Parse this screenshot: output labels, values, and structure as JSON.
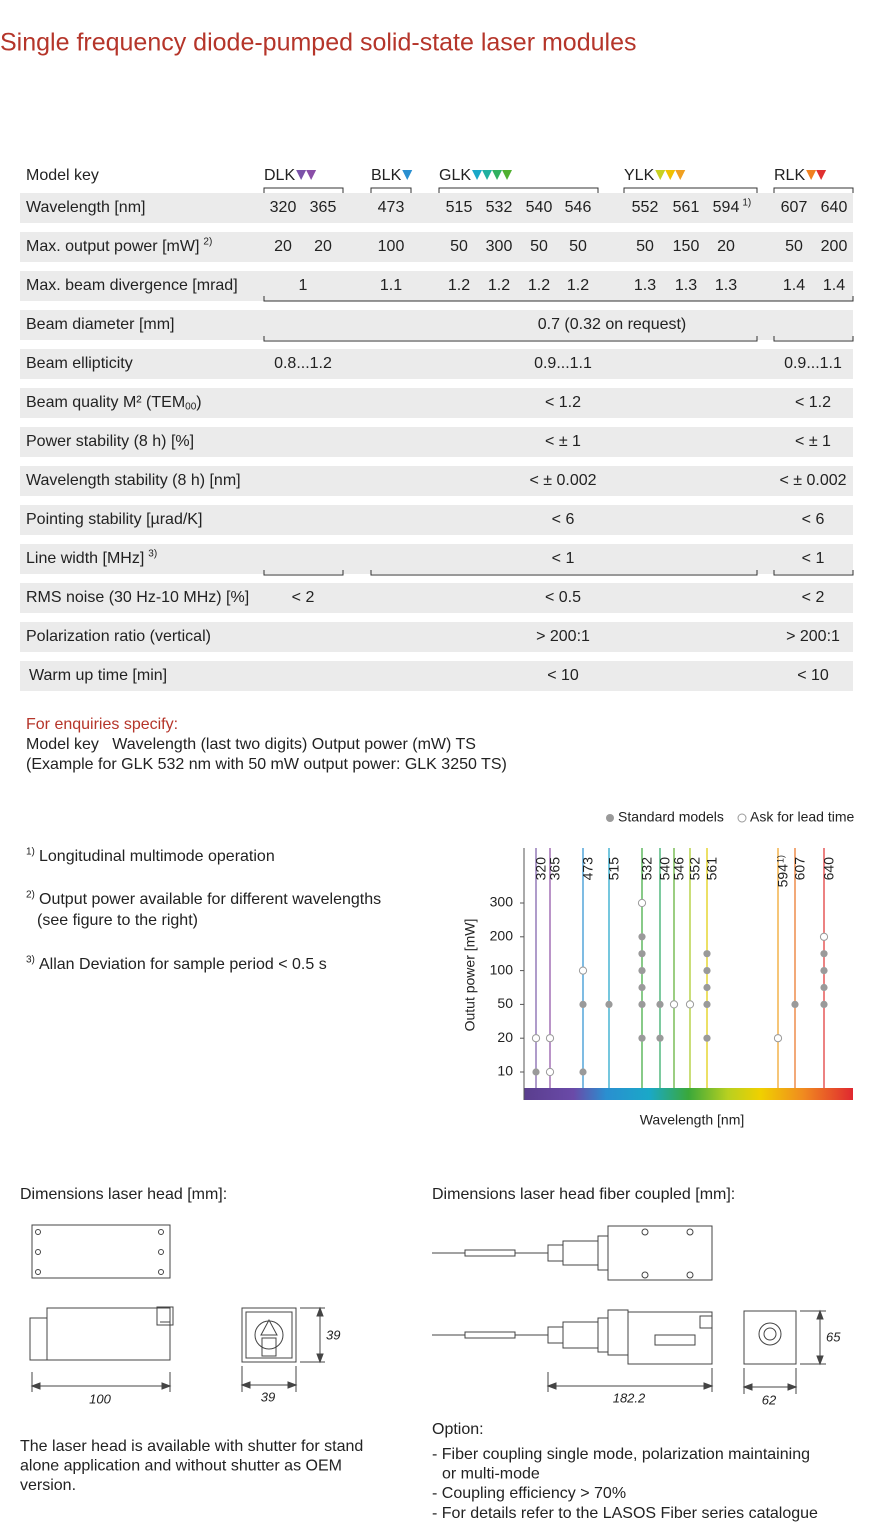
{
  "title": "Single frequency diode-pumped solid-state laser modules",
  "table": {
    "header": {
      "label": "Model key",
      "groups": [
        "DLK",
        "BLK",
        "GLK",
        "YLK",
        "RLK"
      ]
    },
    "rows": [
      {
        "label": "Wavelength [nm]",
        "cells": [
          "320",
          "365",
          "473",
          "515",
          "532",
          "540",
          "546",
          "552",
          "561",
          {
            "text": "594",
            "note": "1)"
          },
          "607",
          "640"
        ]
      },
      {
        "label": "Max. output power [mW]",
        "note": "2)",
        "cells": [
          "20",
          "20",
          "100",
          "50",
          "300",
          "50",
          "50",
          "50",
          "150",
          "20",
          "50",
          "200"
        ]
      },
      {
        "label": "Max. beam divergence [mrad]",
        "cells": [
          "1",
          "1.1",
          "1.2",
          "1.2",
          "1.2",
          "1.2",
          "1.3",
          "1.3",
          "1.3",
          "1.4",
          "1.4"
        ]
      },
      {
        "label": "Beam diameter [mm]",
        "cells": [
          "0.7 (0.32 on request)"
        ]
      },
      {
        "label": "Beam ellipticity",
        "cells": [
          "0.8...1.2",
          "0.9...1.1",
          "0.9...1.1"
        ]
      },
      {
        "label": "Beam quality M² (TEM",
        "label_sub": "00",
        "label_end": ")",
        "cells": [
          "< 1.2",
          "< 1.2"
        ]
      },
      {
        "label": "Power stability (8 h) [%]",
        "cells": [
          "< ± 1",
          "< ± 1"
        ]
      },
      {
        "label": "Wavelength stability (8 h) [nm]",
        "cells": [
          "< ± 0.002",
          "< ± 0.002"
        ]
      },
      {
        "label": "Pointing stability [µrad/K]",
        "cells": [
          "< 6",
          "< 6"
        ]
      },
      {
        "label": "Line width [MHz]",
        "note": "3)",
        "cells": [
          "< 1",
          "< 1"
        ]
      },
      {
        "label": "RMS noise (30 Hz-10 MHz) [%]",
        "cells": [
          "< 2",
          "< 0.5",
          "< 2"
        ]
      },
      {
        "label": "Polarization ratio (vertical)",
        "cells": [
          "> 200:1",
          "> 200:1"
        ]
      },
      {
        "label": "Warm up time [min]",
        "cells": [
          "< 10",
          "< 10"
        ]
      }
    ]
  },
  "enquiries": {
    "heading": "For enquiries specify:",
    "lines": [
      "Model key   Wavelength (last two digits) Output power (mW) TS",
      "(Example for GLK 532 nm with 50 mW output power: GLK 3250 TS)"
    ]
  },
  "footnotes": [
    {
      "mark": "1)",
      "lines": [
        "Longitudinal multimode operation"
      ]
    },
    {
      "mark": "2)",
      "lines": [
        "Output power available for different wavelengths",
        "(see figure to the right)"
      ]
    },
    {
      "mark": "3)",
      "lines": [
        "Allan Deviation for sample period < 0.5 s"
      ]
    }
  ],
  "chart_data": {
    "type": "dot-strip",
    "ylabel": "Outut power [mW]",
    "xlabel": "Wavelength [nm]",
    "categories": [
      "320",
      "365",
      "473",
      "515",
      "532",
      "540",
      "546",
      "552",
      "561",
      "594",
      "607",
      "640"
    ],
    "category_notes": [
      null,
      null,
      null,
      null,
      null,
      null,
      null,
      null,
      null,
      "1)",
      null,
      null
    ],
    "category_colors": [
      "#7a5aa8",
      "#8c4ea4",
      "#2a8fd0",
      "#1aa2c8",
      "#3aa83a",
      "#28a860",
      "#5aae30",
      "#a8c820",
      "#e0cc00",
      "#f0a020",
      "#e87020",
      "#e03030"
    ],
    "yticks": [
      10,
      20,
      50,
      100,
      200,
      300
    ],
    "series": [
      {
        "name": "Standard models",
        "color": "#9a9a9a",
        "marker": "filled",
        "values": [
          [
            10
          ],
          [],
          [
            10,
            50
          ],
          [
            50
          ],
          [
            20,
            50,
            75,
            100,
            150,
            200
          ],
          [
            20,
            50
          ],
          [],
          [],
          [
            20,
            50,
            75,
            100,
            150
          ],
          [],
          [
            50
          ],
          [
            50,
            75,
            100,
            150
          ]
        ]
      },
      {
        "name": "Ask for lead time",
        "color": "#9a9a9a",
        "marker": "open",
        "values": [
          [
            20
          ],
          [
            10,
            20
          ],
          [
            100
          ],
          [],
          [
            300
          ],
          [],
          [
            50
          ],
          [
            50
          ],
          [],
          [
            20
          ],
          [],
          [
            200
          ]
        ]
      }
    ]
  },
  "dimensions": {
    "head": {
      "title": "Dimensions laser head [mm]:",
      "length": "100",
      "width": "39",
      "height": "39",
      "caption": [
        "The laser head is available with shutter for stand",
        "alone application and without shutter as OEM",
        "version."
      ]
    },
    "fiber": {
      "title": "Dimensions laser head fiber coupled [mm]:",
      "length": "182.2",
      "width": "62",
      "height": "65",
      "option_title": "Option:",
      "options": [
        [
          "- Fiber coupling single mode, polarization maintaining",
          "or multi-mode"
        ],
        [
          "- Coupling efficiency > 70%"
        ],
        [
          "- For details refer to the LASOS Fiber series catalogue"
        ]
      ]
    }
  }
}
